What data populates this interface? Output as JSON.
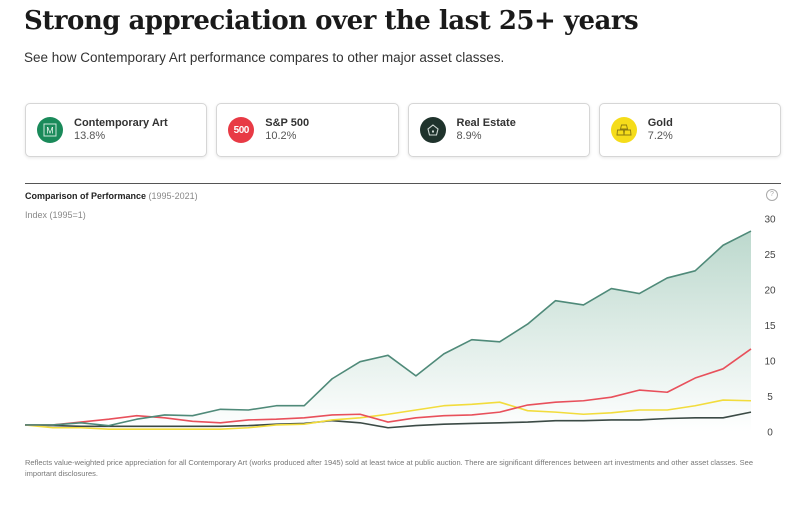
{
  "header": {
    "title": "Strong appreciation over the last 25+ years",
    "subtitle": "See how Contemporary Art performance compares to other major asset classes."
  },
  "cards": [
    {
      "name": "Contemporary Art",
      "value": "13.8%",
      "icon": "masterworks-m-icon",
      "icon_text": "M",
      "color": "#1a8a5a"
    },
    {
      "name": "S&P 500",
      "value": "10.2%",
      "icon": "sp500-icon",
      "icon_text": "500",
      "color": "#e83a45"
    },
    {
      "name": "Real Estate",
      "value": "8.9%",
      "icon": "house-icon",
      "icon_text": "",
      "color": "#1f332c"
    },
    {
      "name": "Gold",
      "value": "7.2%",
      "icon": "gold-bars-icon",
      "icon_text": "",
      "color": "#f5dc1a"
    }
  ],
  "chart_header": {
    "title": "Comparison of Performance",
    "range": "(1995-2021)",
    "index_label": "Index (1995=1)",
    "help_icon": "?"
  },
  "footnote": "Reflects value-weighted price appreciation for all Contemporary Art (works produced after 1945) sold at least twice at public auction. There are significant differences between art investments and other asset classes. See important disclosures.",
  "chart_data": {
    "type": "line",
    "title": "Comparison of Performance (1995-2021)",
    "ylabel": "Index (1995=1)",
    "xlabel": "",
    "x": [
      1995,
      1996,
      1997,
      1998,
      1999,
      2000,
      2001,
      2002,
      2003,
      2004,
      2005,
      2006,
      2007,
      2008,
      2009,
      2010,
      2011,
      2012,
      2013,
      2014,
      2015,
      2016,
      2017,
      2018,
      2019,
      2020,
      2021
    ],
    "ylim": [
      0,
      30
    ],
    "yticks": [
      0,
      5,
      10,
      15,
      20,
      25,
      30
    ],
    "y_axis_side": "right",
    "grid": false,
    "series": [
      {
        "name": "Contemporary Art",
        "color": "#4f8a79",
        "fill": true,
        "values": [
          1.0,
          1.0,
          1.3,
          0.9,
          1.8,
          2.4,
          2.3,
          3.2,
          3.1,
          3.7,
          3.7,
          7.5,
          9.9,
          10.8,
          7.9,
          11.0,
          13.0,
          12.7,
          15.2,
          18.5,
          17.9,
          20.2,
          19.5,
          21.7,
          22.7,
          26.3,
          28.3
        ]
      },
      {
        "name": "S&P 500",
        "color": "#e8505b",
        "fill": false,
        "values": [
          1.0,
          1.0,
          1.4,
          1.8,
          2.3,
          2.0,
          1.5,
          1.3,
          1.7,
          1.8,
          2.0,
          2.4,
          2.5,
          1.4,
          2.0,
          2.3,
          2.4,
          2.8,
          3.8,
          4.2,
          4.4,
          4.9,
          5.9,
          5.6,
          7.6,
          8.9,
          11.7
        ]
      },
      {
        "name": "Gold",
        "color": "#f2dc3c",
        "fill": false,
        "values": [
          1.0,
          0.6,
          0.6,
          0.4,
          0.4,
          0.4,
          0.4,
          0.4,
          0.6,
          1.0,
          1.1,
          1.7,
          2.0,
          2.5,
          3.1,
          3.7,
          3.9,
          4.2,
          3.0,
          2.8,
          2.5,
          2.7,
          3.1,
          3.1,
          3.7,
          4.5,
          4.4
        ]
      },
      {
        "name": "Real Estate",
        "color": "#3b4a45",
        "fill": false,
        "values": [
          1.0,
          0.9,
          0.8,
          0.8,
          0.8,
          0.8,
          0.8,
          0.8,
          0.9,
          1.1,
          1.2,
          1.6,
          1.3,
          0.6,
          0.9,
          1.1,
          1.2,
          1.3,
          1.4,
          1.6,
          1.6,
          1.7,
          1.7,
          1.9,
          2.0,
          2.0,
          2.8
        ]
      }
    ]
  }
}
